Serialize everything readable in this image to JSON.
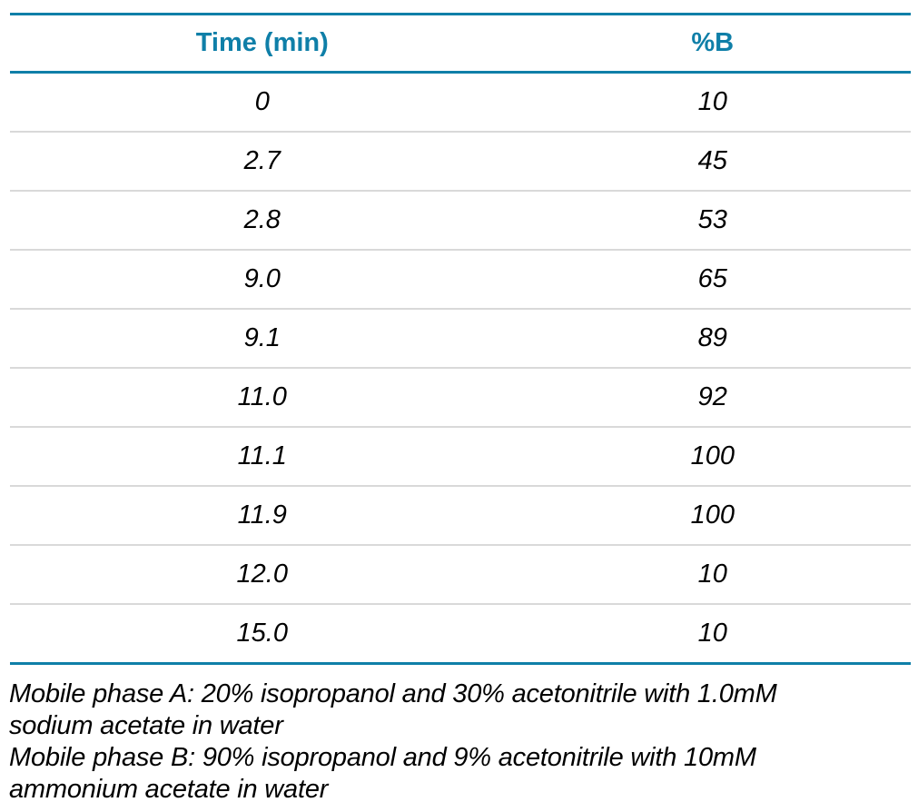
{
  "colors": {
    "accent": "#0f7fa8",
    "divider": "#d9d9d9",
    "body_text": "#000000"
  },
  "table": {
    "columns": [
      {
        "label": "Time (min)"
      },
      {
        "label": "%B"
      }
    ],
    "rows": [
      {
        "time": "0",
        "b": "10"
      },
      {
        "time": "2.7",
        "b": "45"
      },
      {
        "time": "2.8",
        "b": "53"
      },
      {
        "time": "9.0",
        "b": "65"
      },
      {
        "time": "9.1",
        "b": "89"
      },
      {
        "time": "11.0",
        "b": "92"
      },
      {
        "time": "11.1",
        "b": "100"
      },
      {
        "time": "11.9",
        "b": "100"
      },
      {
        "time": "12.0",
        "b": "10"
      },
      {
        "time": "15.0",
        "b": "10"
      }
    ]
  },
  "footer": {
    "lines": [
      "Mobile phase A: 20% isopropanol and 30% acetonitrile with 1.0mM",
      "sodium acetate in water",
      "Mobile phase B: 90% isopropanol and 9% acetonitrile with 10mM",
      "ammonium acetate in water"
    ]
  },
  "chart_data": {
    "type": "table",
    "title": "",
    "columns": [
      "Time (min)",
      "%B"
    ],
    "rows": [
      [
        0,
        10
      ],
      [
        2.7,
        45
      ],
      [
        2.8,
        53
      ],
      [
        9.0,
        65
      ],
      [
        9.1,
        89
      ],
      [
        11.0,
        92
      ],
      [
        11.1,
        100
      ],
      [
        11.9,
        100
      ],
      [
        12.0,
        10
      ],
      [
        15.0,
        10
      ]
    ],
    "notes": [
      "Mobile phase A: 20% isopropanol and 30% acetonitrile with 1.0mM sodium acetate in water",
      "Mobile phase B: 90% isopropanol and 9% acetonitrile with 10mM ammonium acetate in water"
    ]
  }
}
